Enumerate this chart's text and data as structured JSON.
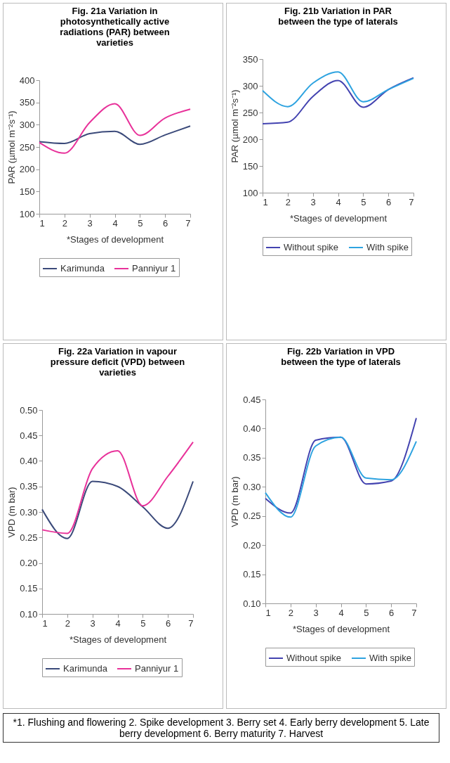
{
  "chart_data": [
    {
      "type": "line",
      "title": "Fig. 21a  Variation in photosynthetically active radiations (PAR)  between varieties",
      "xlabel": "*Stages of development",
      "ylabel": "PAR (µmol m⁻²s⁻¹)",
      "x": [
        1,
        2,
        3,
        4,
        5,
        6,
        7
      ],
      "xlim": [
        1,
        7
      ],
      "xticks": [
        1,
        2,
        3,
        4,
        5,
        6,
        7
      ],
      "ylim": [
        100,
        400
      ],
      "yticks": [
        100,
        150,
        200,
        250,
        300,
        350,
        400
      ],
      "grid": false,
      "legend": "bottom",
      "series": [
        {
          "name": "Karimunda",
          "color": "#3b4a7a",
          "values": [
            262,
            258,
            280,
            285,
            256,
            277,
            297
          ]
        },
        {
          "name": "Panniyur 1",
          "color": "#e8329a",
          "values": [
            260,
            236,
            305,
            347,
            276,
            315,
            335
          ]
        }
      ]
    },
    {
      "type": "line",
      "title": "Fig. 21b   Variation in PAR between the type of laterals",
      "xlabel": "*Stages of development",
      "ylabel": "PAR (µmol m⁻²s⁻¹)",
      "x": [
        1,
        2,
        3,
        4,
        5,
        6,
        7
      ],
      "xlim": [
        1,
        7
      ],
      "xticks": [
        1,
        2,
        3,
        4,
        5,
        6,
        7
      ],
      "ylim": [
        100,
        350
      ],
      "yticks": [
        100,
        150,
        200,
        250,
        300,
        350
      ],
      "grid": false,
      "legend": "bottom",
      "series": [
        {
          "name": "Without spike",
          "color": "#4343b0",
          "values": [
            229,
            232,
            280,
            310,
            260,
            293,
            315
          ]
        },
        {
          "name": "With spike",
          "color": "#2ea3e0",
          "values": [
            291,
            261,
            305,
            326,
            270,
            293,
            314
          ]
        }
      ]
    },
    {
      "type": "line",
      "title": "Fig. 22a  Variation in vapour pressure deficit (VPD) between varieties",
      "xlabel": "*Stages of development",
      "ylabel": "VPD (m bar)",
      "x": [
        1,
        2,
        3,
        4,
        5,
        6,
        7
      ],
      "xlim": [
        1,
        7
      ],
      "xticks": [
        1,
        2,
        3,
        4,
        5,
        6,
        7
      ],
      "ylim": [
        0.1,
        0.5
      ],
      "yticks": [
        {
          "value": 0.1,
          "label": "0.10"
        },
        {
          "value": 0.15,
          "label": "0.15"
        },
        {
          "value": 0.2,
          "label": "0.20"
        },
        {
          "value": 0.25,
          "label": "0.25"
        },
        {
          "value": 0.3,
          "label": "0.30"
        },
        {
          "value": 0.35,
          "label": "0.35"
        },
        {
          "value": 0.4,
          "label": "0.40"
        },
        {
          "value": 0.45,
          "label": "0.45"
        },
        {
          "value": 0.5,
          "label": "0.50"
        }
      ],
      "grid": false,
      "legend": "bottom",
      "series": [
        {
          "name": "Karimunda",
          "color": "#3b4a7a",
          "values": [
            0.305,
            0.248,
            0.36,
            0.35,
            0.31,
            0.268,
            0.36
          ]
        },
        {
          "name": "Panniyur 1",
          "color": "#e8329a",
          "values": [
            0.265,
            0.258,
            0.385,
            0.42,
            0.312,
            0.37,
            0.437
          ]
        }
      ]
    },
    {
      "type": "line",
      "title": "Fig. 22b  Variation in VPD between the type of laterals",
      "xlabel": "*Stages of development",
      "ylabel": "VPD (m bar)",
      "x": [
        1,
        2,
        3,
        4,
        5,
        6,
        7
      ],
      "xlim": [
        1,
        7
      ],
      "xticks": [
        1,
        2,
        3,
        4,
        5,
        6,
        7
      ],
      "ylim": [
        0.1,
        0.45
      ],
      "yticks": [
        {
          "value": 0.1,
          "label": "0.10"
        },
        {
          "value": 0.15,
          "label": "0.15"
        },
        {
          "value": 0.2,
          "label": "0.20"
        },
        {
          "value": 0.25,
          "label": "0.25"
        },
        {
          "value": 0.3,
          "label": "0.30"
        },
        {
          "value": 0.35,
          "label": "0.35"
        },
        {
          "value": 0.4,
          "label": "0.40"
        },
        {
          "value": 0.45,
          "label": "0.45"
        }
      ],
      "grid": false,
      "legend": "bottom",
      "annotations": [
        "*1. Flushing and flowering 2. Spike development 3. Berry set 4. Early berry development  5. Late berry development  6. Berry maturity  7. Harvest"
      ],
      "series": [
        {
          "name": "Without spike",
          "color": "#4343b0",
          "values": [
            0.28,
            0.255,
            0.38,
            0.385,
            0.305,
            0.31,
            0.418
          ]
        },
        {
          "name": "With spike",
          "color": "#2ea3e0",
          "values": [
            0.29,
            0.248,
            0.37,
            0.385,
            0.315,
            0.312,
            0.378
          ]
        }
      ]
    }
  ]
}
